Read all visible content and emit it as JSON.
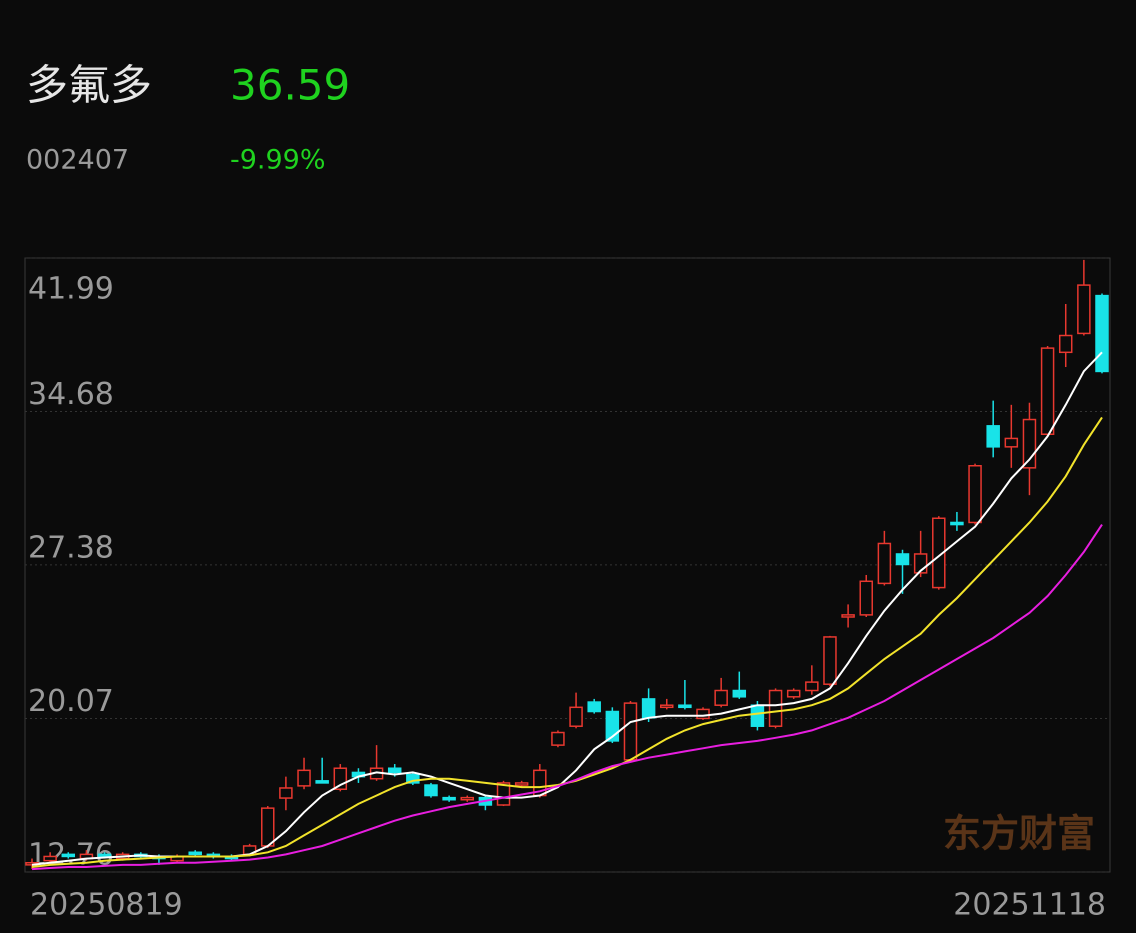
{
  "chart_data": {
    "type": "candlestick",
    "name": "多氟多",
    "price": "36.59",
    "code": "002407",
    "change": "-9.99%",
    "watermark": "东方财富",
    "categories": [
      "20250819",
      null,
      null,
      null,
      null,
      null,
      null,
      null,
      null,
      null,
      null,
      null,
      null,
      null,
      null,
      null,
      null,
      null,
      null,
      null,
      null,
      null,
      null,
      null,
      null,
      null,
      null,
      null,
      null,
      null,
      null,
      null,
      null,
      null,
      null,
      null,
      null,
      null,
      null,
      null,
      null,
      null,
      null,
      null,
      null,
      null,
      null,
      null,
      null,
      null,
      null,
      null,
      null,
      null,
      null,
      null,
      null,
      null,
      null,
      "20251118"
    ],
    "candles": {
      "open": [
        13.1,
        13.3,
        13.6,
        13.4,
        13.6,
        13.4,
        13.6,
        13.5,
        13.3,
        13.7,
        13.6,
        13.5,
        13.6,
        14.0,
        16.28,
        16.86,
        17.1,
        16.7,
        17.5,
        17.2,
        17.7,
        17.4,
        16.9,
        16.3,
        16.2,
        16.3,
        15.95,
        16.9,
        16.4,
        18.8,
        19.7,
        20.85,
        20.4,
        18.1,
        21.0,
        20.6,
        20.7,
        20.07,
        20.7,
        21.4,
        20.7,
        19.7,
        21.1,
        21.4,
        21.7,
        24.9,
        25.0,
        26.5,
        27.9,
        27.0,
        26.3,
        29.4,
        29.4,
        34.0,
        33.0,
        32.0,
        33.6,
        37.5,
        38.4,
        40.2
      ],
      "high": [
        13.4,
        13.7,
        13.7,
        13.8,
        13.7,
        13.7,
        13.7,
        13.6,
        13.6,
        13.8,
        13.7,
        13.6,
        14.1,
        15.9,
        17.3,
        18.2,
        18.2,
        17.9,
        17.7,
        18.8,
        17.9,
        17.5,
        17.0,
        16.4,
        16.4,
        16.4,
        17.1,
        17.1,
        17.9,
        19.5,
        21.3,
        21.0,
        20.6,
        20.9,
        21.5,
        21.0,
        21.9,
        20.6,
        22.0,
        22.3,
        20.9,
        21.5,
        21.5,
        22.6,
        24.0,
        25.5,
        26.9,
        29.0,
        28.1,
        29.0,
        29.7,
        29.9,
        32.2,
        35.2,
        35.0,
        35.1,
        37.8,
        39.8,
        41.9,
        40.3
      ],
      "low": [
        12.9,
        13.2,
        13.4,
        13.3,
        13.4,
        13.3,
        13.4,
        13.1,
        13.2,
        13.5,
        13.4,
        13.3,
        13.5,
        13.9,
        15.7,
        16.7,
        17.0,
        16.6,
        17.0,
        17.1,
        17.3,
        16.9,
        16.3,
        16.1,
        16.1,
        15.7,
        15.9,
        16.8,
        16.3,
        18.7,
        19.6,
        20.3,
        18.9,
        18.0,
        19.9,
        20.5,
        20.5,
        20.0,
        20.6,
        21.0,
        19.5,
        19.6,
        21.0,
        21.2,
        21.6,
        24.4,
        24.9,
        26.4,
        26.0,
        26.8,
        26.2,
        29.0,
        29.3,
        32.5,
        32.0,
        30.7,
        33.5,
        36.8,
        38.3,
        36.5
      ],
      "close": [
        13.2,
        13.5,
        13.5,
        13.6,
        13.5,
        13.6,
        13.5,
        13.4,
        13.5,
        13.6,
        13.5,
        13.4,
        14.0,
        15.8,
        16.76,
        17.6,
        17.0,
        17.7,
        17.3,
        17.7,
        17.5,
        17.0,
        16.4,
        16.2,
        16.3,
        15.95,
        17.0,
        17.0,
        17.6,
        19.4,
        20.6,
        20.4,
        19.0,
        20.8,
        20.1,
        20.7,
        20.6,
        20.5,
        21.4,
        21.1,
        19.7,
        21.4,
        21.4,
        21.8,
        23.95,
        25.0,
        26.6,
        28.4,
        27.4,
        27.9,
        29.6,
        29.3,
        32.1,
        33.0,
        33.4,
        34.3,
        37.7,
        38.3,
        40.7,
        36.59
      ]
    },
    "up_color": "#e8382f",
    "down_color": "#19e3e8",
    "ma_lines": [
      {
        "color": "#ffffff",
        "values": [
          13.1,
          13.2,
          13.3,
          13.4,
          13.45,
          13.5,
          13.55,
          13.5,
          13.5,
          13.5,
          13.5,
          13.5,
          13.6,
          14.0,
          14.7,
          15.6,
          16.4,
          16.9,
          17.3,
          17.5,
          17.4,
          17.5,
          17.3,
          17.0,
          16.7,
          16.4,
          16.3,
          16.3,
          16.4,
          16.8,
          17.6,
          18.6,
          19.2,
          19.9,
          20.1,
          20.2,
          20.2,
          20.2,
          20.3,
          20.5,
          20.7,
          20.7,
          20.8,
          21.0,
          21.5,
          22.7,
          24.0,
          25.2,
          26.2,
          27.1,
          27.8,
          28.5,
          29.2,
          30.3,
          31.5,
          32.4,
          33.5,
          35.0,
          36.6,
          37.5
        ]
      },
      {
        "color": "#f2e32b",
        "values": [
          13.0,
          13.1,
          13.15,
          13.2,
          13.3,
          13.35,
          13.4,
          13.45,
          13.5,
          13.5,
          13.5,
          13.5,
          13.55,
          13.7,
          14.0,
          14.5,
          15.0,
          15.5,
          16.0,
          16.4,
          16.8,
          17.1,
          17.2,
          17.2,
          17.1,
          17.0,
          16.9,
          16.8,
          16.8,
          16.9,
          17.1,
          17.4,
          17.7,
          18.1,
          18.6,
          19.1,
          19.5,
          19.8,
          20.0,
          20.2,
          20.3,
          20.4,
          20.5,
          20.7,
          21.0,
          21.5,
          22.2,
          22.9,
          23.5,
          24.1,
          25.0,
          25.8,
          26.7,
          27.6,
          28.5,
          29.4,
          30.4,
          31.6,
          33.1,
          34.4
        ]
      },
      {
        "color": "#e81ee0",
        "values": [
          12.9,
          12.95,
          13.0,
          13.0,
          13.05,
          13.1,
          13.1,
          13.15,
          13.2,
          13.2,
          13.25,
          13.3,
          13.35,
          13.45,
          13.6,
          13.8,
          14.0,
          14.3,
          14.6,
          14.9,
          15.2,
          15.45,
          15.65,
          15.85,
          16.0,
          16.15,
          16.3,
          16.45,
          16.6,
          16.85,
          17.15,
          17.5,
          17.8,
          18.0,
          18.2,
          18.35,
          18.5,
          18.65,
          18.8,
          18.9,
          19.0,
          19.15,
          19.3,
          19.5,
          19.8,
          20.1,
          20.5,
          20.9,
          21.4,
          21.9,
          22.4,
          22.9,
          23.4,
          23.9,
          24.5,
          25.1,
          25.9,
          26.9,
          28.0,
          29.3
        ]
      }
    ],
    "ylim": [
      12.76,
      41.99
    ],
    "yticks": [
      12.76,
      20.07,
      27.38,
      34.68,
      41.99
    ],
    "grid": true
  }
}
